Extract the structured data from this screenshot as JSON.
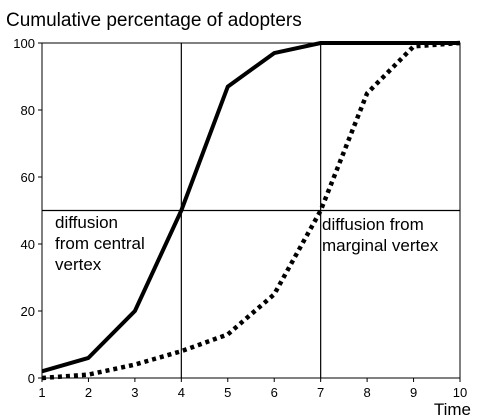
{
  "chart_data": {
    "type": "line",
    "title": "Cumulative percentage of adopters",
    "xlabel": "Time",
    "ylabel": "",
    "x": [
      1,
      2,
      3,
      4,
      5,
      6,
      7,
      8,
      9,
      10
    ],
    "xlim": [
      1,
      10
    ],
    "ylim": [
      0,
      100
    ],
    "xticks": [
      "1",
      "2",
      "3",
      "4",
      "5",
      "6",
      "7",
      "8",
      "9",
      "10"
    ],
    "yticks": [
      "0",
      "20",
      "40",
      "60",
      "80",
      "100"
    ],
    "grid": false,
    "series": [
      {
        "style": "solid",
        "values": [
          2,
          6,
          20,
          50,
          87,
          97,
          100,
          100,
          100,
          100
        ]
      },
      {
        "style": "dotted",
        "values": [
          0,
          1,
          4,
          8,
          13,
          25,
          50,
          85,
          99,
          100
        ]
      }
    ],
    "reference_lines": {
      "horizontal": [
        50
      ],
      "vertical": [
        4,
        7
      ]
    },
    "annotations": [
      {
        "lines": [
          "diffusion",
          "from central",
          "vertex"
        ]
      },
      {
        "lines": [
          "diffusion from",
          "marginal vertex"
        ]
      }
    ],
    "colors": {
      "line": "#000000",
      "background": "#ffffff"
    }
  }
}
